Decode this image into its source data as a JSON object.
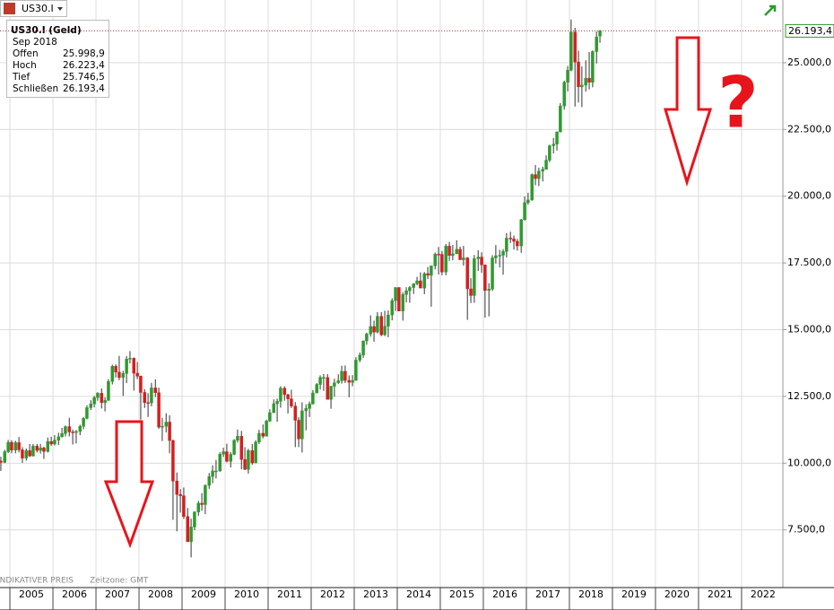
{
  "header": {
    "symbol": "US30.I"
  },
  "tooltip": {
    "title": "US30.I (Geld)",
    "date": "Sep 2018",
    "rows": [
      {
        "label": "Offen",
        "value": "25.998,9"
      },
      {
        "label": "Hoch",
        "value": "26.223,4"
      },
      {
        "label": "Tief",
        "value": "25.746,5"
      },
      {
        "label": "Schließen",
        "value": "26.193,4"
      }
    ]
  },
  "footer": {
    "note": "INDIKATIVER PREIS",
    "timezone": "Zeitzone: GMT"
  },
  "chart_data": {
    "type": "candlestick",
    "x": [
      2004.79,
      2004.88,
      2004.96,
      2005.04,
      2005.13,
      2005.21,
      2005.29,
      2005.38,
      2005.46,
      2005.54,
      2005.63,
      2005.71,
      2005.79,
      2005.88,
      2005.96,
      2006.04,
      2006.13,
      2006.21,
      2006.29,
      2006.38,
      2006.46,
      2006.54,
      2006.63,
      2006.71,
      2006.79,
      2006.88,
      2006.96,
      2007.04,
      2007.13,
      2007.21,
      2007.29,
      2007.38,
      2007.46,
      2007.54,
      2007.63,
      2007.71,
      2007.79,
      2007.88,
      2007.96,
      2008.04,
      2008.13,
      2008.21,
      2008.29,
      2008.38,
      2008.46,
      2008.54,
      2008.63,
      2008.71,
      2008.79,
      2008.88,
      2008.96,
      2009.04,
      2009.13,
      2009.21,
      2009.29,
      2009.38,
      2009.46,
      2009.54,
      2009.63,
      2009.71,
      2009.79,
      2009.88,
      2009.96,
      2010.04,
      2010.13,
      2010.21,
      2010.29,
      2010.38,
      2010.46,
      2010.54,
      2010.63,
      2010.71,
      2010.79,
      2010.88,
      2010.96,
      2011.04,
      2011.13,
      2011.21,
      2011.29,
      2011.38,
      2011.46,
      2011.54,
      2011.63,
      2011.71,
      2011.79,
      2011.88,
      2011.96,
      2012.04,
      2012.13,
      2012.21,
      2012.29,
      2012.38,
      2012.46,
      2012.54,
      2012.63,
      2012.71,
      2012.79,
      2012.88,
      2012.96,
      2013.04,
      2013.13,
      2013.21,
      2013.29,
      2013.38,
      2013.46,
      2013.54,
      2013.63,
      2013.71,
      2013.79,
      2013.88,
      2013.96,
      2014.04,
      2014.13,
      2014.21,
      2014.29,
      2014.38,
      2014.46,
      2014.54,
      2014.63,
      2014.71,
      2014.79,
      2014.88,
      2014.96,
      2015.04,
      2015.13,
      2015.21,
      2015.29,
      2015.38,
      2015.46,
      2015.54,
      2015.63,
      2015.71,
      2015.79,
      2015.88,
      2015.96,
      2016.04,
      2016.13,
      2016.21,
      2016.29,
      2016.38,
      2016.46,
      2016.54,
      2016.63,
      2016.71,
      2016.79,
      2016.88,
      2016.96,
      2017.04,
      2017.13,
      2017.21,
      2017.29,
      2017.38,
      2017.46,
      2017.54,
      2017.63,
      2017.71,
      2017.79,
      2017.88,
      2017.96,
      2018.04,
      2018.13,
      2018.21,
      2018.29,
      2018.38,
      2018.46,
      2018.54,
      2018.63,
      2018.71
    ],
    "open": [
      10080,
      10030,
      10430,
      10780,
      10490,
      10770,
      10500,
      10190,
      10470,
      10270,
      10640,
      10480,
      10570,
      10440,
      10810,
      10720,
      10860,
      10990,
      11110,
      11370,
      11170,
      11150,
      11190,
      11380,
      11680,
      12080,
      12220,
      12460,
      12620,
      12270,
      12350,
      13060,
      13630,
      13410,
      13210,
      13360,
      13900,
      13930,
      13370,
      13260,
      12650,
      12270,
      12260,
      12820,
      12640,
      11350,
      11380,
      11540,
      10850,
      9330,
      8830,
      8780,
      8000,
      7060,
      7610,
      8170,
      8500,
      8450,
      9170,
      9500,
      9710,
      9710,
      10340,
      10430,
      10070,
      10330,
      10860,
      11010,
      10140,
      9770,
      10470,
      10010,
      10790,
      11120,
      11010,
      11580,
      11890,
      12230,
      12320,
      12810,
      12570,
      12410,
      12140,
      11610,
      10910,
      11960,
      12050,
      12220,
      12630,
      12950,
      13210,
      13210,
      12390,
      12880,
      13010,
      13090,
      13440,
      13100,
      13030,
      13100,
      13860,
      14050,
      14580,
      14840,
      15120,
      14910,
      15500,
      14810,
      15130,
      15550,
      16090,
      16580,
      15700,
      16320,
      16460,
      16580,
      16720,
      16830,
      16560,
      17100,
      17040,
      17390,
      17830,
      17820,
      17160,
      18130,
      17780,
      17840,
      18010,
      17620,
      17690,
      16530,
      16280,
      17660,
      17720,
      17430,
      16470,
      16520,
      17690,
      17770,
      17790,
      17930,
      18430,
      18400,
      18310,
      18140,
      19120,
      19760,
      19860,
      20810,
      20660,
      20940,
      21010,
      21350,
      21890,
      21950,
      22410,
      23380,
      24270,
      24720,
      26150,
      25030,
      24100,
      24160,
      24420,
      24270,
      25420,
      25998.9
    ],
    "high": [
      10240,
      10500,
      10870,
      10860,
      10840,
      10980,
      10600,
      10550,
      10720,
      10720,
      10720,
      10720,
      10620,
      10960,
      10990,
      11050,
      11140,
      11320,
      11410,
      11700,
      11260,
      11240,
      11440,
      11720,
      12170,
      12360,
      12520,
      12660,
      12800,
      12470,
      13150,
      13690,
      13700,
      14020,
      13460,
      14010,
      14200,
      13960,
      13790,
      13280,
      12770,
      12620,
      13010,
      13140,
      12830,
      11700,
      11870,
      11790,
      10880,
      9650,
      9030,
      9090,
      8320,
      7920,
      8200,
      8590,
      8880,
      9200,
      9630,
      9920,
      10120,
      10410,
      10580,
      10730,
      10420,
      10900,
      11260,
      11210,
      10600,
      10540,
      10720,
      10860,
      11250,
      11450,
      11630,
      12020,
      12390,
      12420,
      12880,
      12880,
      12590,
      12750,
      12290,
      11720,
      12280,
      12200,
      12310,
      12740,
      13000,
      13290,
      13340,
      13340,
      12900,
      13160,
      13330,
      13650,
      13660,
      13290,
      13300,
      13970,
      14150,
      14590,
      14890,
      15540,
      15340,
      15660,
      15660,
      15710,
      15720,
      16180,
      16590,
      16590,
      16400,
      16590,
      16630,
      16740,
      16980,
      17150,
      17160,
      17350,
      17400,
      17890,
      18100,
      17950,
      18210,
      18290,
      18180,
      18350,
      18110,
      18140,
      17720,
      16930,
      17800,
      17980,
      17900,
      17440,
      16740,
      17790,
      18170,
      17990,
      18020,
      18620,
      18670,
      18530,
      18400,
      19150,
      19990,
      20130,
      20850,
      21170,
      21070,
      21110,
      21530,
      21930,
      22180,
      22420,
      23490,
      24330,
      24880,
      26620,
      26310,
      25450,
      24860,
      25090,
      25400,
      25460,
      26170,
      26223.4
    ],
    "low": [
      9710,
      10000,
      10380,
      10370,
      10370,
      10400,
      10010,
      10100,
      10230,
      10250,
      10400,
      10360,
      10160,
      10400,
      10650,
      10660,
      10680,
      10960,
      11000,
      11000,
      10700,
      10740,
      11050,
      11270,
      11640,
      11990,
      12090,
      12340,
      12050,
      11940,
      12340,
      12950,
      13210,
      13110,
      12520,
      13000,
      13740,
      12720,
      13150,
      11630,
      12070,
      11730,
      12130,
      12480,
      11290,
      10830,
      11150,
      10370,
      7880,
      7450,
      8150,
      7910,
      7050,
      6470,
      7490,
      8030,
      8220,
      8090,
      9040,
      9250,
      9430,
      9680,
      10230,
      10030,
      9840,
      10300,
      10770,
      9770,
      9740,
      9610,
      9940,
      10000,
      10710,
      10930,
      11000,
      11540,
      11880,
      11550,
      12080,
      12340,
      11860,
      12070,
      10600,
      10600,
      10400,
      11230,
      11730,
      12200,
      12620,
      12760,
      12710,
      12380,
      12040,
      12490,
      12970,
      12980,
      13000,
      12470,
      12880,
      13100,
      13780,
      13940,
      14440,
      14740,
      14550,
      14860,
      14760,
      14760,
      14720,
      15350,
      15700,
      15700,
      15340,
      16020,
      16010,
      16340,
      16660,
      16560,
      16330,
      16900,
      15860,
      17260,
      17070,
      17040,
      17040,
      17580,
      17600,
      17840,
      17620,
      17400,
      15370,
      16000,
      16010,
      17200,
      17130,
      15450,
      15500,
      16450,
      17480,
      17330,
      17060,
      17710,
      18250,
      18000,
      17960,
      17880,
      19090,
      19680,
      19830,
      20410,
      20380,
      20550,
      20990,
      21280,
      21600,
      21710,
      22390,
      23240,
      23920,
      24680,
      23360,
      23510,
      23340,
      23920,
      24000,
      24080,
      24970,
      25746.5
    ],
    "close": [
      10030,
      10430,
      10780,
      10490,
      10770,
      10500,
      10190,
      10470,
      10270,
      10640,
      10480,
      10570,
      10440,
      10810,
      10720,
      10860,
      10990,
      11110,
      11370,
      11170,
      11150,
      11190,
      11380,
      11680,
      12080,
      12220,
      12460,
      12620,
      12270,
      12350,
      13060,
      13630,
      13410,
      13210,
      13360,
      13900,
      13930,
      13370,
      13260,
      12650,
      12270,
      12260,
      12820,
      12640,
      11350,
      11380,
      11540,
      10850,
      9330,
      8830,
      8780,
      8000,
      7060,
      7610,
      8170,
      8500,
      8450,
      9170,
      9500,
      9710,
      9710,
      10340,
      10430,
      10070,
      10330,
      10860,
      11010,
      10140,
      9770,
      10470,
      10010,
      10790,
      11120,
      11010,
      11580,
      11890,
      12230,
      12320,
      12810,
      12570,
      12410,
      12140,
      11610,
      10910,
      11960,
      12050,
      12220,
      12630,
      12950,
      13210,
      13210,
      12390,
      12880,
      13010,
      13090,
      13440,
      13100,
      13030,
      13100,
      13860,
      14050,
      14580,
      14840,
      15120,
      14910,
      15500,
      14810,
      15130,
      15550,
      16090,
      16580,
      15700,
      16320,
      16460,
      16580,
      16720,
      16830,
      16560,
      17100,
      17040,
      17390,
      17830,
      17820,
      17160,
      18130,
      17780,
      17840,
      18010,
      17620,
      17690,
      16530,
      16280,
      17660,
      17720,
      17430,
      16470,
      16520,
      17690,
      17770,
      17790,
      17930,
      18430,
      18400,
      18310,
      18140,
      19120,
      19760,
      19860,
      20810,
      20660,
      20940,
      21010,
      21350,
      21890,
      21950,
      22410,
      23380,
      24270,
      24720,
      26150,
      25030,
      24100,
      24160,
      24420,
      24270,
      25420,
      25960,
      26193.4
    ],
    "up_color": "#2f9a2f",
    "down_color": "#d41f1f",
    "wick_color": "#333333",
    "xlim": [
      2004.77,
      2022.96
    ],
    "xticks": [
      2005,
      2006,
      2007,
      2008,
      2009,
      2010,
      2011,
      2012,
      2013,
      2014,
      2015,
      2016,
      2017,
      2018,
      2019,
      2020,
      2021,
      2022
    ],
    "ylim": [
      5340,
      27350
    ],
    "yticks": [
      {
        "value": 7500,
        "label": "7.500,0"
      },
      {
        "value": 10000,
        "label": "10.000,0"
      },
      {
        "value": 12500,
        "label": "12.500,0"
      },
      {
        "value": 15000,
        "label": "15.000,0"
      },
      {
        "value": 17500,
        "label": "17.500,0"
      },
      {
        "value": 20000,
        "label": "20.000,0"
      },
      {
        "value": 22500,
        "label": "22.500,0"
      },
      {
        "value": 25000,
        "label": "25.000,0"
      }
    ],
    "grid": true,
    "last_price": {
      "value": 26193.4,
      "label": "26.193,4"
    },
    "annotation": "?"
  }
}
